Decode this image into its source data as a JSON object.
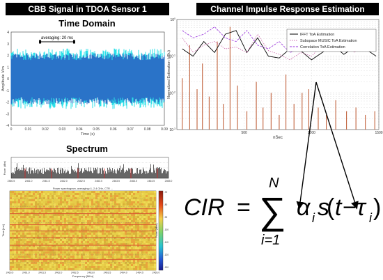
{
  "banners": {
    "left": "CBB Signal in TDOA Sensor 1",
    "right": "Channel Impulse Response Estimation"
  },
  "time_domain": {
    "title": "Time Domain",
    "annotation": "averaging: 20 ms"
  },
  "spectrum": {
    "title": "Spectrum"
  },
  "spectrogram": {
    "title": "Power spectrogram, averaging=1, 2.4 GHz, CTR ...",
    "ylabel": "Time [ms]",
    "xlabel": "Frequency [MHz]",
    "colorbar_label": "Power [dBm]",
    "x_ticks": [
      "2460.5",
      "2461.0",
      "2461.5",
      "2462.0",
      "2462.5",
      "2463.0",
      "2463.5",
      "2464.0",
      "2464.5",
      "2465.0"
    ],
    "colorbar_ticks": [
      "-70",
      "-80",
      "-90",
      "-100",
      "-110",
      "-120",
      "-130"
    ]
  },
  "formula": {
    "lhs": "CIR",
    "eq": "=",
    "sum": "∑",
    "upper": "N",
    "lower": "i=1",
    "alpha": "α",
    "sub_i": "i",
    "s": "s",
    "open": "(",
    "t": "t",
    "minus": "−",
    "tau": "τ",
    "sub_i2": "i",
    "close": ")"
  },
  "chart_data": [
    {
      "type": "line",
      "title": "Time Domain",
      "xlabel": "Time (s)",
      "ylabel": "Amplitude V/m",
      "xlim": [
        0,
        0.09
      ],
      "ylim": [
        -4,
        4
      ],
      "x_ticks": [
        0,
        0.01,
        0.02,
        0.03,
        0.04,
        0.05,
        0.06,
        0.07,
        0.08,
        0.09
      ],
      "y_ticks": [
        4,
        3,
        2,
        1,
        0,
        -1,
        -2,
        -3,
        -4
      ],
      "series": [
        {
          "values_envelope_upper": 2.6,
          "values_envelope_lower": -2.6,
          "color": "#2a73c8",
          "peak_color": "#2be0e8"
        }
      ]
    },
    {
      "type": "bar",
      "title": "Spectrum",
      "ylabel": "Power (dBm)",
      "x_ticks": [
        "2460.5",
        "2461.0",
        "2461.5",
        "2462.0",
        "2462.5",
        "2463.0",
        "2463.5",
        "2464.0",
        "2464.5",
        "2465.0"
      ],
      "grid": true
    },
    {
      "type": "heatmap",
      "title": "Power spectrogram",
      "xlabel": "Frequency [MHz]",
      "ylabel": "Time [ms]",
      "colorbar_ticks": [
        -70,
        -80,
        -90,
        -100,
        -110,
        -120,
        -130
      ],
      "grid": true
    },
    {
      "type": "line",
      "title": "Channel Impulse Response Estimation",
      "xlabel": "nSec",
      "ylabel": "Normalized Estimation (dBu)",
      "xlim": [
        0,
        1500
      ],
      "x_ticks": [
        500,
        1000,
        1500
      ],
      "y_ticks": [
        "10^0",
        "10^-1",
        "10^-2",
        "10^-3"
      ],
      "log_y": true,
      "legend_position": "top-right",
      "series": [
        {
          "name": "IFFT ToA Estimation",
          "color": "#000000",
          "x": [
            40,
            120,
            200,
            280,
            360,
            440,
            520,
            600,
            680,
            760,
            840,
            920,
            1000,
            1080,
            1160,
            1240,
            1320,
            1400,
            1480
          ],
          "y": [
            -0.8,
            -1.0,
            -0.6,
            -0.9,
            -0.4,
            -0.3,
            -0.9,
            -0.5,
            -1.0,
            -1.05,
            -0.8,
            -0.85,
            -1.1,
            -0.9,
            -0.7,
            -0.95,
            -0.75,
            -0.8,
            -1.0
          ]
        },
        {
          "name": "Subspace MUSIC ToA Estimation",
          "color": "#cc66aa",
          "x": [
            40,
            120,
            200,
            280,
            360,
            440,
            520,
            600,
            680,
            760,
            840,
            920,
            1000,
            1080,
            1160,
            1240,
            1320,
            1400,
            1480
          ],
          "y": [
            -0.5,
            -0.9,
            -0.7,
            -0.6,
            -0.8,
            -0.75,
            -0.9,
            -0.4,
            -0.85,
            -0.95,
            -1.1,
            -0.9,
            -1.0,
            -0.7,
            -0.8,
            -0.6,
            -0.9,
            -0.5,
            -0.7
          ]
        },
        {
          "name": "Correlation ToA Estimation",
          "color": "#9933dd",
          "x": [
            40,
            120,
            200,
            280,
            360,
            440,
            520,
            600,
            680,
            760,
            840,
            920,
            1000,
            1080,
            1160,
            1240,
            1320,
            1400,
            1480
          ],
          "y": [
            -0.3,
            -0.5,
            -0.4,
            -0.2,
            -0.5,
            -0.6,
            -0.3,
            -0.7,
            -0.8,
            -0.6,
            -0.9,
            -0.8,
            -0.7,
            -0.5,
            -0.6,
            -0.4,
            -0.5,
            -0.6,
            -0.55
          ]
        }
      ],
      "stems": {
        "color": "#c0603a",
        "x": [
          40,
          95,
          150,
          190,
          240,
          300,
          345,
          395,
          450,
          520,
          590,
          640,
          700,
          760,
          810,
          870,
          930,
          980,
          1050,
          1110,
          1180,
          1260,
          1330,
          1400,
          1470
        ],
        "y": [
          -1.6,
          -0.7,
          -1.9,
          -1.2,
          -2.1,
          -0.6,
          -2.3,
          -0.2,
          -1.8,
          -2.5,
          -1.7,
          -2.4,
          -2.0,
          -2.6,
          -1.5,
          -2.3,
          -2.0,
          -1.9,
          -2.4,
          -2.6,
          -2.2,
          -2.5,
          -2.4,
          -2.6,
          -2.5
        ]
      }
    }
  ]
}
